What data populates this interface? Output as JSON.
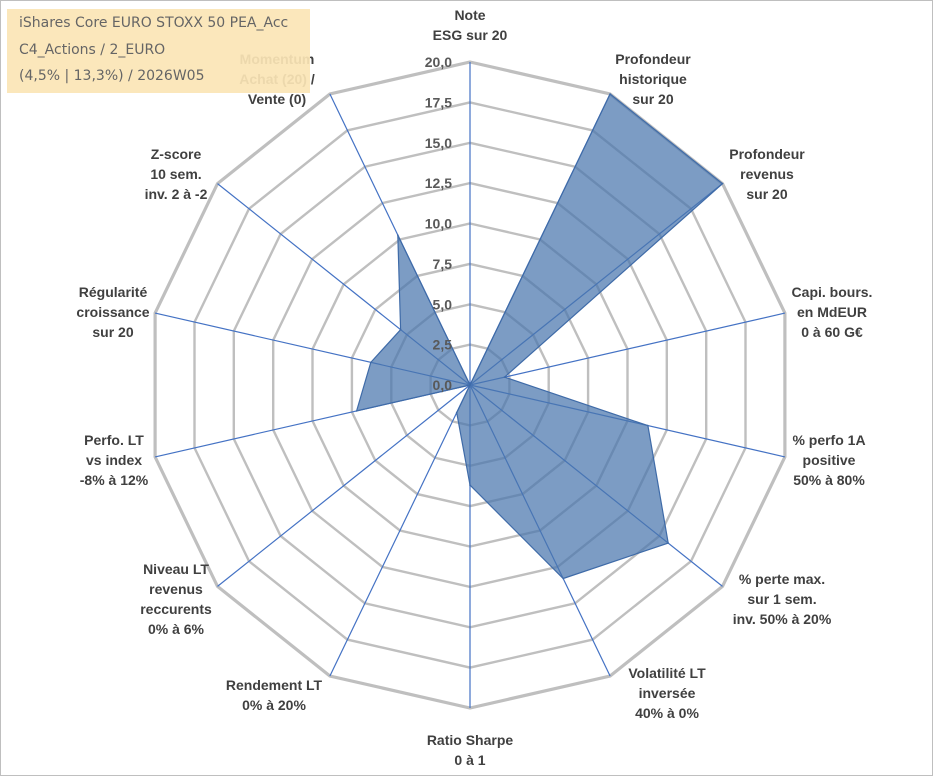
{
  "chart_data": {
    "type": "radar",
    "title_lines": [
      "iShares Core EURO STOXX 50 PEA_Acc",
      "C4_Actions / 2_EURO",
      "(4,5% | 13,3%) / 2026W05"
    ],
    "rlim": [
      0,
      20
    ],
    "tick_values": [
      0,
      2.5,
      5,
      7.5,
      10,
      12.5,
      15,
      17.5,
      20
    ],
    "tick_labels": [
      "0,0",
      "2,5",
      "5,0",
      "7,5",
      "10,0",
      "12,5",
      "15,0",
      "17,5",
      "20,0"
    ],
    "categories": [
      [
        "Note",
        "ESG sur 20"
      ],
      [
        "Profondeur",
        "historique",
        "sur 20"
      ],
      [
        "Profondeur",
        "revenus",
        "sur 20"
      ],
      [
        "Capi. bours.",
        "en MdEUR",
        "0 à 60 G€"
      ],
      [
        "% perfo 1A",
        "positive",
        "50% à 80%"
      ],
      [
        "% perte max.",
        "sur 1 sem.",
        "inv. 50% à 20%"
      ],
      [
        "Volatilité LT",
        "inversée",
        "40% à 0%"
      ],
      [
        "Ratio Sharpe",
        "0 à 1"
      ],
      [
        "Rendement LT",
        "0% à 20%"
      ],
      [
        "Niveau LT",
        "revenus",
        "reccurents",
        "0% à 6%"
      ],
      [
        "Perfo. LT",
        "vs index",
        "-8% à 12%"
      ],
      [
        "Régularité",
        "croissance",
        "sur 20"
      ],
      [
        "Z-score",
        "10 sem.",
        "inv. 2 à -2"
      ],
      [
        "Momentum",
        "Achat (20) /",
        "Vente (0)"
      ]
    ],
    "series": [
      {
        "name": "iShares Core EURO STOXX 50 PEA_Acc",
        "values": [
          0,
          20,
          20,
          2.2,
          11.3,
          15.7,
          13.3,
          6.2,
          1.9,
          0,
          7.2,
          6.3,
          5.5,
          10.3
        ]
      }
    ],
    "colors": {
      "fill": "#4a76ad",
      "stroke": "#3f6ba8",
      "grid": "#bfbfbf",
      "spoke": "#4472c4",
      "title_bg": "#fbe5b6"
    }
  }
}
